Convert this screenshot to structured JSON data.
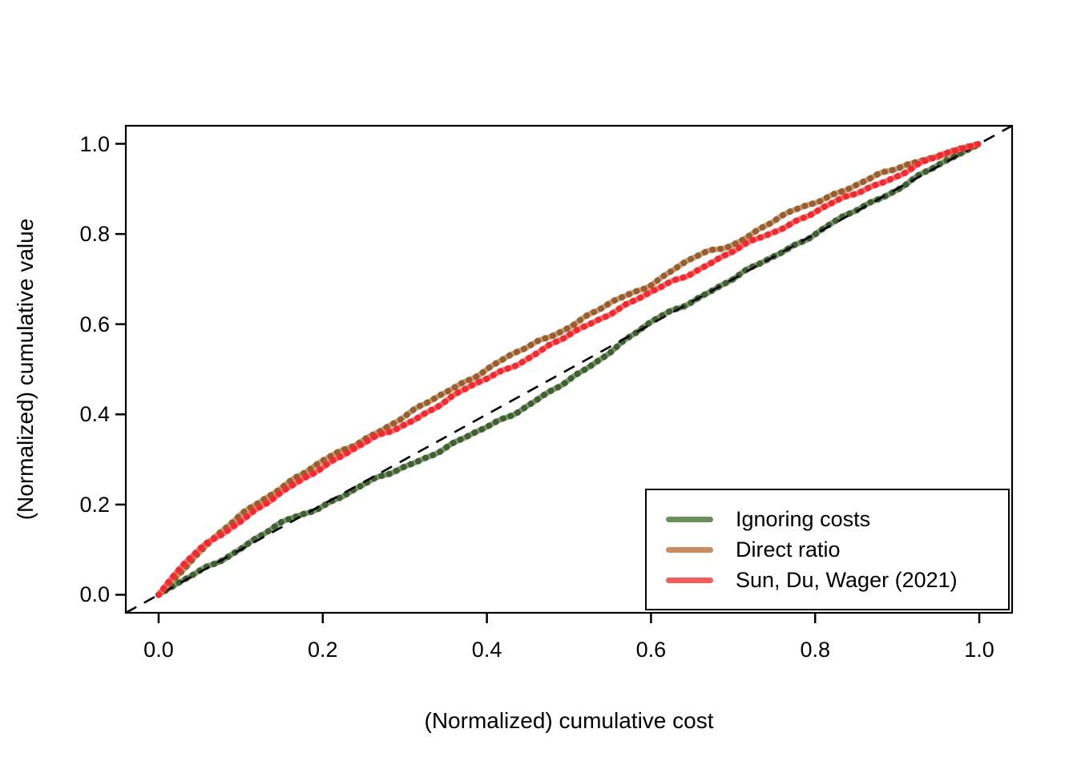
{
  "figure": {
    "background": "#ffffff",
    "frame_color": "#000000"
  },
  "chart_data": {
    "type": "line",
    "title": "",
    "xlabel": "(Normalized) cumulative cost",
    "ylabel": "(Normalized) cumulative value",
    "xlim": [
      -0.04,
      1.04
    ],
    "ylim": [
      -0.04,
      1.04
    ],
    "grid": false,
    "x_ticks": [
      "0.0",
      "0.2",
      "0.4",
      "0.6",
      "0.8",
      "1.0"
    ],
    "y_ticks": [
      "0.0",
      "0.2",
      "0.4",
      "0.6",
      "0.8",
      "1.0"
    ],
    "x_tick_values": [
      0,
      0.2,
      0.4,
      0.6,
      0.8,
      1.0
    ],
    "y_tick_values": [
      0,
      0.2,
      0.4,
      0.6,
      0.8,
      1.0
    ],
    "reference_line": {
      "name": "identity diagonal y = x",
      "style": "dashed",
      "color": "#000000",
      "from": [
        0,
        0
      ],
      "to": [
        1,
        1
      ]
    },
    "x": [
      0,
      0.02,
      0.05,
      0.1,
      0.15,
      0.2,
      0.25,
      0.3,
      0.35,
      0.4,
      0.45,
      0.5,
      0.55,
      0.6,
      0.65,
      0.7,
      0.75,
      0.8,
      0.85,
      0.9,
      0.95,
      1.0
    ],
    "series": [
      {
        "name": "Ignoring costs",
        "color": "#6B8E5A",
        "dot_color": "#3F6030",
        "values": [
          0,
          0.021,
          0.052,
          0.103,
          0.158,
          0.198,
          0.243,
          0.285,
          0.325,
          0.373,
          0.42,
          0.475,
          0.54,
          0.603,
          0.652,
          0.7,
          0.752,
          0.8,
          0.853,
          0.9,
          0.952,
          1.0
        ]
      },
      {
        "name": "Direct ratio",
        "color": "#CD8A5E",
        "dot_color": "#95602E",
        "values": [
          0,
          0.038,
          0.095,
          0.175,
          0.24,
          0.295,
          0.345,
          0.395,
          0.45,
          0.5,
          0.55,
          0.595,
          0.645,
          0.69,
          0.745,
          0.778,
          0.83,
          0.87,
          0.91,
          0.945,
          0.975,
          1.0
        ]
      },
      {
        "name": "Sun, Du, Wager (2021)",
        "color": "#FA5A58",
        "dot_color": "#F4282E",
        "values": [
          0,
          0.045,
          0.1,
          0.165,
          0.225,
          0.285,
          0.335,
          0.378,
          0.43,
          0.48,
          0.525,
          0.575,
          0.625,
          0.67,
          0.715,
          0.762,
          0.805,
          0.85,
          0.89,
          0.93,
          0.972,
          1.0
        ]
      }
    ],
    "legend": {
      "position": "bottom-right",
      "entries": [
        "Ignoring costs",
        "Direct ratio",
        "Sun, Du, Wager (2021)"
      ]
    }
  }
}
